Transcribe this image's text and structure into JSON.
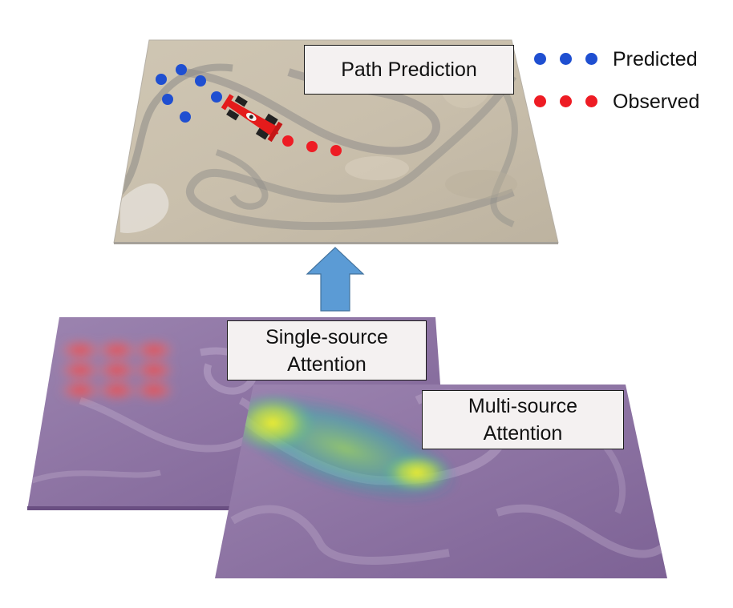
{
  "labels": {
    "path_prediction": "Path Prediction",
    "single_source": [
      "Single-source",
      "Attention"
    ],
    "multi_source": [
      "Multi-source",
      "Attention"
    ]
  },
  "legend": {
    "predicted": "Predicted",
    "observed": "Observed"
  },
  "colors": {
    "predicted": "#1f4fd1",
    "observed": "#ee1c24",
    "arrow": "#5b9bd5",
    "attention_tint": "#7b5a94"
  }
}
